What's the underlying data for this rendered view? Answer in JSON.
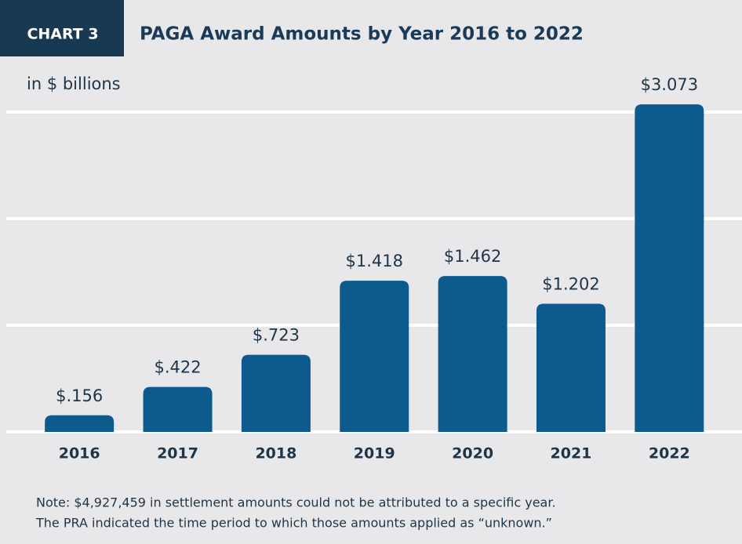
{
  "chart_data": {
    "type": "bar",
    "badge": "CHART 3",
    "title": "PAGA Award Amounts by Year 2016 to 2022",
    "unit_label": "in $ billions",
    "categories": [
      "2016",
      "2017",
      "2018",
      "2019",
      "2020",
      "2021",
      "2022"
    ],
    "values": [
      0.156,
      0.422,
      0.723,
      1.418,
      1.462,
      1.202,
      3.073
    ],
    "value_labels": [
      "$.156",
      "$.422",
      "$.723",
      "$1.418",
      "$1.462",
      "$1.202",
      "$3.073"
    ],
    "color": "#0d5a8c",
    "ylim": [
      0,
      3.1
    ],
    "yticks": [
      0,
      1,
      2,
      3
    ],
    "grid": true,
    "notes": [
      "Note: $4,927,459 in settlement amounts could not be attributed to a specific year.",
      "The PRA indicated the time period to which those amounts applied as “unknown.”"
    ]
  }
}
